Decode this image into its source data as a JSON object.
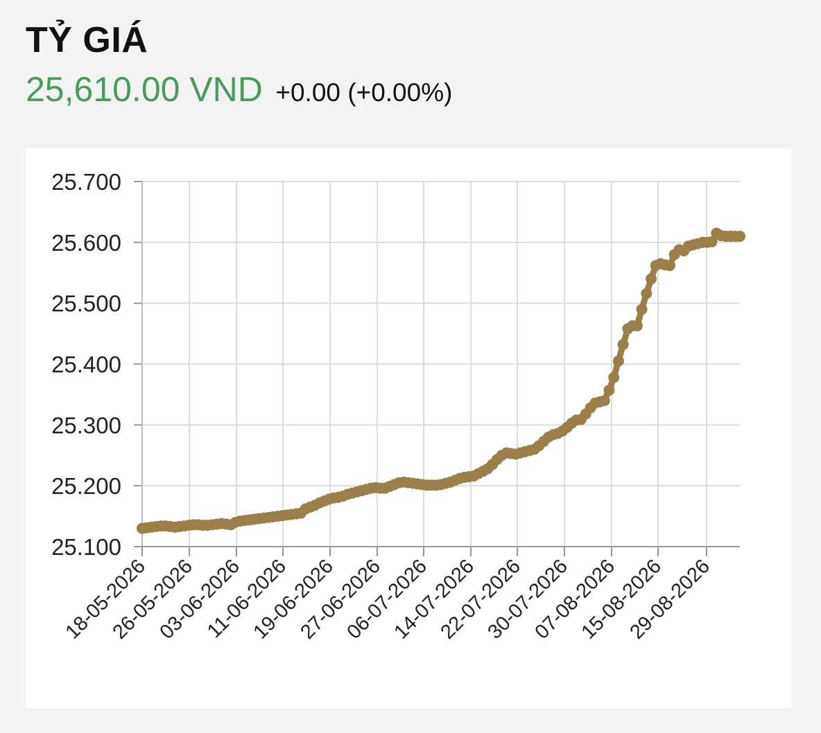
{
  "header": {
    "title": "TỶ GIÁ",
    "rate": "25,610.00 VND",
    "change": "+0.00 (+0.00%)"
  },
  "colors": {
    "rate_green": "#4a9a5e",
    "series": "#9a7f4a",
    "grid": "#dddddd"
  },
  "chart_data": {
    "type": "line",
    "title": "",
    "xlabel": "",
    "ylabel": "",
    "ylim": [
      25100,
      25700
    ],
    "y_ticks": [
      25700,
      25600,
      25500,
      25400,
      25300,
      25200,
      25100
    ],
    "y_tick_labels": [
      "25.700",
      "25.600",
      "25.500",
      "25.400",
      "25.300",
      "25.200",
      "25.100"
    ],
    "x_tick_labels": [
      "18-05-2026",
      "26-05-2026",
      "03-06-2026",
      "11-06-2026",
      "19-06-2026",
      "27-06-2026",
      "06-07-2026",
      "14-07-2026",
      "22-07-2026",
      "30-07-2026",
      "07-08-2026",
      "15-08-2026",
      "29-08-2026"
    ],
    "grid": true,
    "legend": "none",
    "series": [
      {
        "values": [
          25130,
          25131,
          25132,
          25133,
          25134,
          25134,
          25133,
          25132,
          25133,
          25134,
          25135,
          25136,
          25136,
          25135,
          25135,
          25136,
          25137,
          25138,
          25137,
          25136,
          25140,
          25142,
          25143,
          25144,
          25145,
          25146,
          25147,
          25148,
          25149,
          25150,
          25151,
          25152,
          25153,
          25154,
          25155,
          25162,
          25165,
          25168,
          25172,
          25175,
          25178,
          25180,
          25181,
          25183,
          25186,
          25188,
          25190,
          25192,
          25194,
          25196,
          25197,
          25196,
          25196,
          25199,
          25202,
          25205,
          25206,
          25205,
          25204,
          25203,
          25202,
          25201,
          25201,
          25201,
          25202,
          25204,
          25206,
          25209,
          25212,
          25214,
          25215,
          25216,
          25220,
          25224,
          25228,
          25235,
          25243,
          25250,
          25254,
          25253,
          25252,
          25254,
          25256,
          25258,
          25260,
          25266,
          25273,
          25280,
          25284,
          25286,
          25290,
          25296,
          25303,
          25308,
          25309,
          25318,
          25328,
          25336,
          25338,
          25340,
          25357,
          25378,
          25405,
          25432,
          25458,
          25463,
          25463,
          25490,
          25516,
          25540,
          25562,
          25565,
          25563,
          25562,
          25580,
          25588,
          25586,
          25594,
          25596,
          25598,
          25600,
          25600,
          25601,
          25615,
          25611,
          25610,
          25610,
          25610,
          25610
        ]
      }
    ]
  }
}
